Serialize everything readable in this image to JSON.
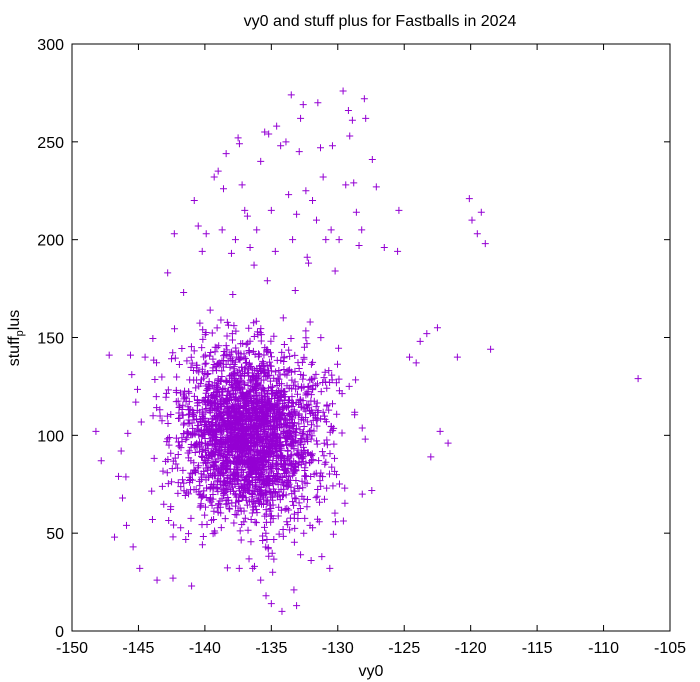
{
  "chart_data": {
    "type": "scatter",
    "title": "vy0 and stuff plus for Fastballs in 2024",
    "xlabel": "vy0",
    "ylabel_main": "stuff",
    "ylabel_sub": "p",
    "ylabel_tail": "lus",
    "xlim": [
      -150,
      -105
    ],
    "ylim": [
      0,
      300
    ],
    "x_ticks": [
      -150,
      -145,
      -140,
      -135,
      -130,
      -125,
      -120,
      -115,
      -110,
      -105
    ],
    "y_ticks": [
      0,
      50,
      100,
      150,
      200,
      250,
      300
    ],
    "grid": false,
    "legend": "none",
    "marker": "plus",
    "color": "#9400D3",
    "cluster": {
      "center_x": -136.6,
      "center_y": 100,
      "sd_x": 2.7,
      "sd_y": 22,
      "count": 2600
    },
    "points": [
      [
        -148.2,
        102
      ],
      [
        -147.8,
        87
      ],
      [
        -147.2,
        141
      ],
      [
        -146.8,
        48
      ],
      [
        -146.5,
        79
      ],
      [
        -146.3,
        92
      ],
      [
        -146.2,
        68
      ],
      [
        -145.9,
        54
      ],
      [
        -145.8,
        101
      ],
      [
        -145.6,
        141
      ],
      [
        -145.5,
        131
      ],
      [
        -145.4,
        43
      ],
      [
        -145.2,
        117
      ],
      [
        -144.9,
        32
      ],
      [
        -144.5,
        140
      ],
      [
        -143.9,
        110
      ],
      [
        -143.6,
        26
      ],
      [
        -142.8,
        183
      ],
      [
        -142.7,
        95
      ],
      [
        -142.4,
        27
      ],
      [
        -142.3,
        203
      ],
      [
        -141.6,
        173
      ],
      [
        -141.0,
        23
      ],
      [
        -140.8,
        220
      ],
      [
        -140.5,
        207
      ],
      [
        -140.2,
        194
      ],
      [
        -139.9,
        203
      ],
      [
        -139.6,
        164
      ],
      [
        -139.3,
        232
      ],
      [
        -139.0,
        235
      ],
      [
        -138.7,
        205
      ],
      [
        -138.6,
        226
      ],
      [
        -138.4,
        244
      ],
      [
        -138.0,
        193
      ],
      [
        -137.9,
        172
      ],
      [
        -137.7,
        200
      ],
      [
        -137.5,
        252
      ],
      [
        -137.4,
        249
      ],
      [
        -137.2,
        228
      ],
      [
        -137.0,
        215
      ],
      [
        -136.8,
        212
      ],
      [
        -136.6,
        196
      ],
      [
        -136.3,
        187
      ],
      [
        -136.1,
        205
      ],
      [
        -135.8,
        240
      ],
      [
        -135.5,
        255
      ],
      [
        -135.3,
        179
      ],
      [
        -135.2,
        254
      ],
      [
        -135.0,
        215
      ],
      [
        -134.7,
        194
      ],
      [
        -134.6,
        258
      ],
      [
        -134.3,
        248
      ],
      [
        -134.1,
        160
      ],
      [
        -133.9,
        250
      ],
      [
        -133.7,
        223
      ],
      [
        -133.5,
        274
      ],
      [
        -133.4,
        200
      ],
      [
        -133.2,
        174
      ],
      [
        -133.1,
        213
      ],
      [
        -132.9,
        245
      ],
      [
        -132.8,
        262
      ],
      [
        -132.6,
        269
      ],
      [
        -132.4,
        225
      ],
      [
        -132.3,
        191
      ],
      [
        -132.2,
        188
      ],
      [
        -131.9,
        220
      ],
      [
        -131.6,
        210
      ],
      [
        -131.5,
        270
      ],
      [
        -131.3,
        247
      ],
      [
        -131.1,
        232
      ],
      [
        -130.9,
        200
      ],
      [
        -130.5,
        205
      ],
      [
        -130.4,
        248
      ],
      [
        -130.2,
        184
      ],
      [
        -129.9,
        200
      ],
      [
        -129.6,
        276
      ],
      [
        -129.4,
        228
      ],
      [
        -129.2,
        266
      ],
      [
        -129.1,
        253
      ],
      [
        -128.9,
        261
      ],
      [
        -128.8,
        229
      ],
      [
        -128.6,
        214
      ],
      [
        -128.4,
        197
      ],
      [
        -128.2,
        205
      ],
      [
        -128.0,
        272
      ],
      [
        -127.9,
        262
      ],
      [
        -127.4,
        241
      ],
      [
        -127.1,
        227
      ],
      [
        -126.5,
        196
      ],
      [
        -125.4,
        215
      ],
      [
        -125.5,
        194
      ],
      [
        -124.6,
        140
      ],
      [
        -124.1,
        137
      ],
      [
        -123.8,
        148
      ],
      [
        -123.3,
        152
      ],
      [
        -123.0,
        89
      ],
      [
        -122.5,
        155
      ],
      [
        -122.3,
        102
      ],
      [
        -121.7,
        96
      ],
      [
        -121.0,
        140
      ],
      [
        -120.1,
        221
      ],
      [
        -119.9,
        210
      ],
      [
        -119.5,
        203
      ],
      [
        -119.2,
        214
      ],
      [
        -118.9,
        198
      ],
      [
        -118.5,
        144
      ],
      [
        -107.4,
        129
      ],
      [
        -135.4,
        18
      ],
      [
        -135.0,
        14
      ],
      [
        -134.2,
        10
      ],
      [
        -133.1,
        13
      ],
      [
        -133.3,
        21
      ],
      [
        -135.8,
        26
      ],
      [
        -134.9,
        30
      ],
      [
        -136.4,
        32
      ],
      [
        -130.6,
        32
      ],
      [
        -131.2,
        38
      ],
      [
        -132.8,
        39
      ]
    ]
  }
}
